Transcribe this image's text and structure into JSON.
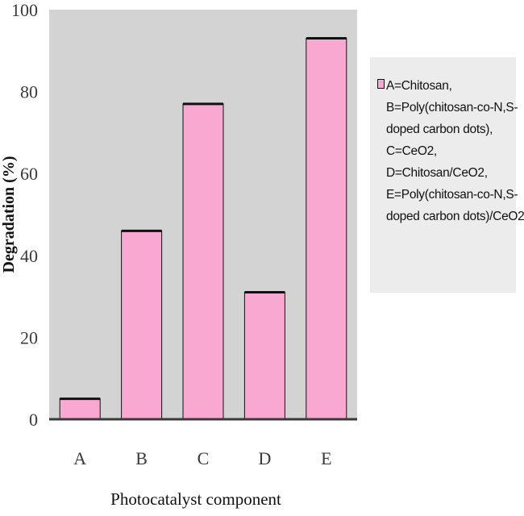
{
  "chart_data": {
    "type": "bar",
    "categories": [
      "A",
      "B",
      "C",
      "D",
      "E"
    ],
    "values": [
      5,
      46,
      77,
      31,
      93
    ],
    "ylabel": "Degradation (%)",
    "xlabel": "Photocatalyst component",
    "ylim": [
      0,
      100
    ],
    "yticks": [
      "0",
      "20",
      "40",
      "60",
      "80",
      "100"
    ],
    "grid": false,
    "legend": {
      "placement": "right",
      "lines": [
        "A=Chitosan,",
        "B=Poly(chitosan-co-N,S-",
        "doped carbon dots),",
        "C=CeO2,",
        "D=Chitosan/CeO2,",
        "E=Poly(chitosan-co-N,S-",
        "doped carbon dots)/CeO2"
      ]
    },
    "colors": {
      "bar_fill": "#f9a9d1",
      "bar_edge": "#111111",
      "plot_background": "#d3d3d3",
      "legend_background": "#ececec",
      "axis_line": "#3a3a3a"
    }
  }
}
